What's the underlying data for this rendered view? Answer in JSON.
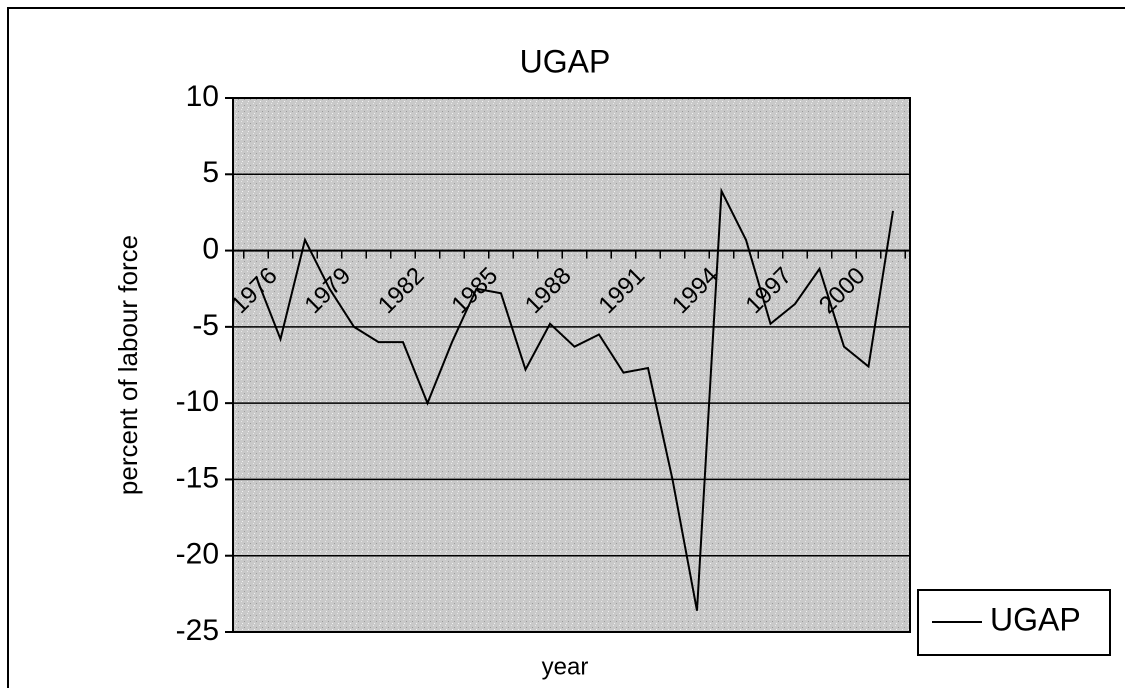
{
  "chart_data": {
    "type": "line",
    "title": "UGAP",
    "x_label": "year",
    "y_label": "percent of labour force",
    "categories": [
      "1976",
      null,
      null,
      "1979",
      null,
      null,
      "1982",
      null,
      null,
      "1985",
      null,
      null,
      "1988",
      null,
      null,
      "1991",
      null,
      null,
      "1994",
      null,
      null,
      "1997",
      null,
      null,
      "2000",
      null,
      null
    ],
    "series": [
      {
        "name": "UGAP",
        "color": "#000000",
        "values": [
          -1.7,
          -5.8,
          0.7,
          -2.5,
          -5,
          -6,
          -6,
          -10,
          -6,
          -2.5,
          -2.8,
          -7.8,
          -4.8,
          -6.3,
          -5.5,
          -8,
          -7.7,
          -15,
          -23.6,
          3.9,
          0.7,
          -4.8,
          -3.5,
          -1.2,
          -6.3,
          -7.6,
          2.6
        ]
      }
    ],
    "ylim": [
      -25,
      10
    ],
    "yticks": [
      -25,
      -20,
      -15,
      -10,
      -5,
      0,
      5,
      10
    ],
    "grid": true,
    "legend": "right"
  }
}
